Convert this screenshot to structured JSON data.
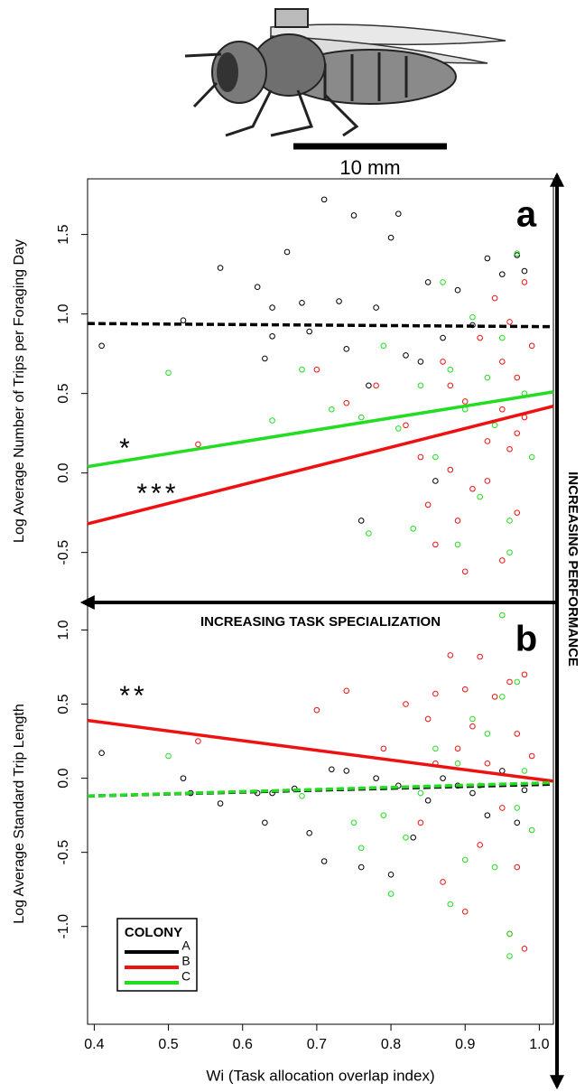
{
  "scale_bar_label": "10 mm",
  "x_arrow_label": "INCREASING TASK SPECIALIZATION",
  "y_arrow_label": "INCREASING PERFORMANCE",
  "chart_data": [
    {
      "type": "scatter",
      "panel_label": "a",
      "ylabel": "Log Average Number of Trips per Foraging Day",
      "annotations": [
        "*",
        "***"
      ],
      "xlim": [
        0.391,
        1.019
      ],
      "ylim": [
        -0.82,
        1.85
      ],
      "yticks": [
        -0.5,
        {
          "value": 0,
          "label": "0.0"
        },
        0.5,
        {
          "value": 1,
          "label": "1.0"
        },
        1.5
      ],
      "series": [
        {
          "name": "A",
          "color": "#000000",
          "x": [
            0.41,
            0.52,
            0.57,
            0.62,
            0.63,
            0.64,
            0.66,
            0.68,
            0.69,
            0.71,
            0.73,
            0.75,
            0.76,
            0.78,
            0.8,
            0.81,
            0.82,
            0.84,
            0.85,
            0.87,
            0.89,
            0.91,
            0.93,
            0.95,
            0.97,
            0.98,
            0.77,
            0.64,
            0.86,
            0.74
          ],
          "y": [
            0.8,
            0.96,
            1.29,
            1.17,
            0.72,
            0.86,
            1.39,
            1.07,
            0.89,
            1.72,
            1.08,
            1.62,
            -0.3,
            1.04,
            1.48,
            1.63,
            0.74,
            0.7,
            1.2,
            0.85,
            1.15,
            0.93,
            1.35,
            1.25,
            1.37,
            1.27,
            0.55,
            1.04,
            -0.05,
            0.78
          ],
          "fit": {
            "x": [
              0.391,
              1.019
            ],
            "y": [
              0.94,
              0.92
            ],
            "dashed": true
          }
        },
        {
          "name": "B",
          "color": "#ee1111",
          "x": [
            0.54,
            0.7,
            0.74,
            0.78,
            0.82,
            0.84,
            0.85,
            0.86,
            0.87,
            0.88,
            0.89,
            0.9,
            0.91,
            0.92,
            0.93,
            0.94,
            0.95,
            0.95,
            0.96,
            0.96,
            0.97,
            0.97,
            0.98,
            0.98,
            0.99,
            0.9,
            0.88,
            0.93,
            0.95,
            0.97
          ],
          "y": [
            0.18,
            0.65,
            0.44,
            0.55,
            0.3,
            0.1,
            -0.2,
            -0.45,
            0.7,
            0.02,
            -0.3,
            0.45,
            -0.1,
            0.85,
            0.2,
            1.1,
            -0.55,
            0.4,
            0.95,
            0.15,
            0.6,
            -0.25,
            1.2,
            0.35,
            0.8,
            -0.62,
            0.55,
            -0.05,
            0.7,
            0.25
          ],
          "fit": {
            "x": [
              0.391,
              1.019
            ],
            "y": [
              -0.32,
              0.42
            ],
            "dashed": false
          }
        },
        {
          "name": "C",
          "color": "#22dd22",
          "x": [
            0.5,
            0.64,
            0.68,
            0.72,
            0.76,
            0.77,
            0.79,
            0.81,
            0.83,
            0.84,
            0.86,
            0.88,
            0.89,
            0.9,
            0.91,
            0.92,
            0.93,
            0.94,
            0.95,
            0.96,
            0.97,
            0.98,
            0.99,
            0.87,
            0.96
          ],
          "y": [
            0.63,
            0.33,
            0.65,
            0.4,
            0.35,
            -0.38,
            0.8,
            0.28,
            -0.35,
            0.55,
            0.1,
            0.65,
            -0.45,
            0.4,
            0.98,
            -0.15,
            0.6,
            0.3,
            0.85,
            -0.5,
            1.38,
            0.5,
            0.1,
            1.2,
            -0.3
          ],
          "fit": {
            "x": [
              0.391,
              1.019
            ],
            "y": [
              0.04,
              0.51
            ],
            "dashed": false
          }
        }
      ]
    },
    {
      "type": "scatter",
      "panel_label": "b",
      "ylabel": "Log Average Standard Trip Length",
      "xlabel": "Wi (Task allocation overlap index)",
      "legend_title": "COLONY",
      "annotations": [
        "**"
      ],
      "xlim": [
        0.391,
        1.019
      ],
      "ylim": [
        -1.66,
        1.18
      ],
      "xticks": [
        0.4,
        0.5,
        0.6,
        0.7,
        0.8,
        0.9,
        {
          "value": 1,
          "label": "1.0"
        }
      ],
      "yticks": [
        {
          "value": -1,
          "label": "-1.0"
        },
        -0.5,
        {
          "value": 0,
          "label": "0.0"
        },
        0.5,
        {
          "value": 1,
          "label": "1.0"
        }
      ],
      "series": [
        {
          "name": "A",
          "color": "#000000",
          "x": [
            0.41,
            0.52,
            0.53,
            0.57,
            0.62,
            0.63,
            0.64,
            0.67,
            0.69,
            0.71,
            0.72,
            0.74,
            0.76,
            0.78,
            0.8,
            0.81,
            0.83,
            0.85,
            0.87,
            0.89,
            0.91,
            0.93,
            0.95,
            0.97,
            0.98
          ],
          "y": [
            0.17,
            0.0,
            -0.1,
            -0.17,
            -0.1,
            -0.3,
            -0.1,
            -0.07,
            -0.37,
            -0.56,
            0.06,
            0.05,
            -0.6,
            0.0,
            -0.65,
            -0.05,
            -0.4,
            -0.15,
            0.0,
            -0.05,
            -0.1,
            -0.25,
            0.05,
            -0.3,
            -0.08
          ],
          "fit": {
            "x": [
              0.391,
              1.019
            ],
            "y": [
              -0.12,
              -0.04
            ],
            "dashed": true
          }
        },
        {
          "name": "B",
          "color": "#ee1111",
          "x": [
            0.54,
            0.7,
            0.74,
            0.79,
            0.82,
            0.84,
            0.85,
            0.86,
            0.87,
            0.88,
            0.89,
            0.9,
            0.9,
            0.91,
            0.92,
            0.93,
            0.94,
            0.95,
            0.96,
            0.96,
            0.97,
            0.97,
            0.98,
            0.98,
            0.99,
            0.86,
            0.92
          ],
          "y": [
            0.25,
            0.46,
            0.59,
            0.2,
            0.5,
            -0.3,
            0.4,
            0.1,
            -0.7,
            0.83,
            0.2,
            -0.9,
            0.6,
            0.35,
            -0.45,
            0.1,
            0.55,
            -0.2,
            0.65,
            -1.05,
            0.3,
            -0.6,
            0.7,
            -1.15,
            0.15,
            0.57,
            0.82
          ],
          "fit": {
            "x": [
              0.391,
              1.019
            ],
            "y": [
              0.39,
              -0.02
            ],
            "dashed": false
          }
        },
        {
          "name": "C",
          "color": "#22dd22",
          "x": [
            0.5,
            0.68,
            0.75,
            0.76,
            0.79,
            0.8,
            0.82,
            0.84,
            0.86,
            0.88,
            0.89,
            0.9,
            0.91,
            0.92,
            0.93,
            0.94,
            0.95,
            0.96,
            0.97,
            0.97,
            0.98,
            0.99,
            0.96,
            0.95
          ],
          "y": [
            0.15,
            -0.12,
            -0.3,
            -0.47,
            -0.25,
            -0.78,
            -0.4,
            -0.1,
            0.2,
            -0.85,
            0.1,
            -0.55,
            0.4,
            -0.05,
            0.3,
            -0.6,
            0.55,
            -1.05,
            0.65,
            -0.2,
            0.05,
            -0.35,
            -1.2,
            1.1
          ],
          "fit": {
            "x": [
              0.391,
              1.019
            ],
            "y": [
              -0.12,
              -0.03
            ],
            "dashed": true
          }
        }
      ]
    }
  ]
}
